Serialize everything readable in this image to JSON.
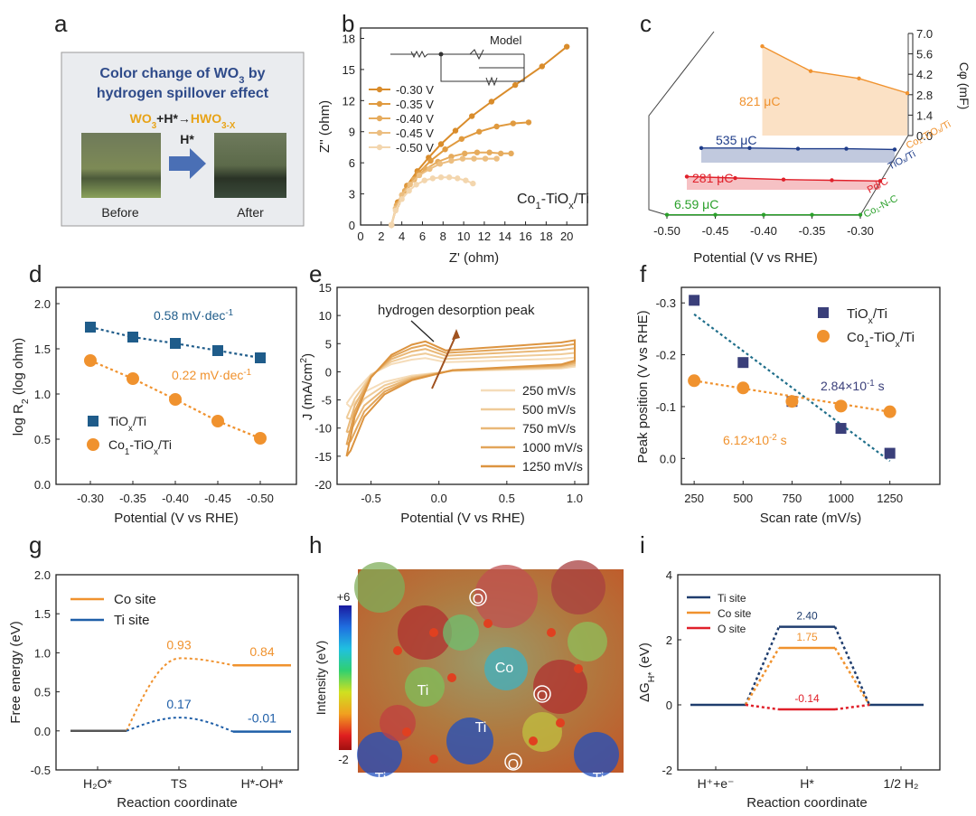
{
  "panel_labels": [
    "a",
    "b",
    "c",
    "d",
    "e",
    "f",
    "g",
    "h",
    "i"
  ],
  "panel_a": {
    "title_line1": "Color change of WO",
    "title_sub": "3",
    "title_line1_end": " by",
    "title_line2": "hydrogen spillover effect",
    "eq_wo": "WO",
    "eq_3": "3",
    "eq_mid": "+H*→",
    "eq_hwo": "HWO",
    "eq_3x": "3-X",
    "arrow_label": "H*",
    "before": "Before",
    "after": "After",
    "colors": {
      "title": "#2f4b8a",
      "eq": "#e8a317",
      "arrow": "#4a6fb5",
      "box_bg": "#eaecef"
    }
  },
  "chart_data": [
    {
      "panel": "b",
      "type": "line",
      "xlabel": "Z' (ohm)",
      "ylabel": "Z'' (ohm)",
      "xlim": [
        0,
        22
      ],
      "ylim": [
        0,
        19
      ],
      "xticks": [
        0,
        2,
        4,
        6,
        8,
        10,
        12,
        14,
        16,
        18,
        20
      ],
      "yticks": [
        0,
        3,
        6,
        9,
        12,
        15,
        18
      ],
      "model_label": "Model",
      "annotation": "Co",
      "annotation_sub": "1",
      "annotation_end": "-TiO",
      "annotation_sub2": "x",
      "annotation_end2": "/Ti",
      "series": [
        {
          "name": "-0.30 V",
          "color": "#d98c2b",
          "x": [
            3,
            3.6,
            4.5,
            5.5,
            6.6,
            7.8,
            9.2,
            10.8,
            12.7,
            15,
            17.6,
            20
          ],
          "y": [
            0,
            2.2,
            3.8,
            5.2,
            6.5,
            7.8,
            9.1,
            10.5,
            11.9,
            13.5,
            15.3,
            17.2
          ]
        },
        {
          "name": "-0.35 V",
          "color": "#e09a3f",
          "x": [
            3,
            3.6,
            4.5,
            5.6,
            6.8,
            8.2,
            9.8,
            11.5,
            13.2,
            14.8,
            16.3
          ],
          "y": [
            0,
            2.1,
            3.7,
            5,
            6.2,
            7.3,
            8.3,
            9.0,
            9.5,
            9.8,
            9.9
          ]
        },
        {
          "name": "-0.40 V",
          "color": "#e6ab5c",
          "x": [
            3,
            3.5,
            4.3,
            5.2,
            6.3,
            7.5,
            8.8,
            10.1,
            11.3,
            12.5,
            13.6,
            14.6
          ],
          "y": [
            0,
            1.9,
            3.3,
            4.4,
            5.4,
            6.1,
            6.6,
            6.9,
            7.0,
            7.0,
            6.9,
            6.9
          ]
        },
        {
          "name": "-0.45 V",
          "color": "#ecbe80",
          "x": [
            3,
            3.4,
            4,
            4.8,
            5.7,
            6.7,
            7.7,
            8.8,
            9.9,
            11,
            12.1,
            13.2
          ],
          "y": [
            0,
            1.6,
            2.9,
            3.9,
            4.8,
            5.4,
            5.9,
            6.2,
            6.4,
            6.4,
            6.4,
            6.4
          ]
        },
        {
          "name": "-0.50 V",
          "color": "#f3d6ae",
          "x": [
            3,
            3.4,
            4,
            4.7,
            5.4,
            6.2,
            7.0,
            7.8,
            8.6,
            9.4,
            10.2,
            10.9
          ],
          "y": [
            0,
            1.4,
            2.5,
            3.3,
            3.9,
            4.3,
            4.5,
            4.6,
            4.6,
            4.5,
            4.3,
            4.0
          ]
        }
      ]
    },
    {
      "panel": "c",
      "type": "line",
      "xlabel": "Potential (V vs RHE)",
      "ylabel": "Cφ (mF)",
      "xlim": [
        -0.5,
        -0.3
      ],
      "xticks": [
        -0.5,
        -0.45,
        -0.4,
        -0.35,
        -0.3
      ],
      "yticks": [
        0.0,
        1.4,
        2.8,
        4.2,
        5.6,
        7.0
      ],
      "series": [
        {
          "name": "Co₁-TiOₓ/Ti",
          "color": "#f0922e",
          "label": "821 μC",
          "x": [
            -0.45,
            -0.4,
            -0.35,
            -0.3
          ],
          "y": [
            6.1,
            4.4,
            3.9,
            2.9
          ]
        },
        {
          "name": "TiOₓ/Ti",
          "color": "#1f3d8a",
          "label": "535 μC",
          "x": [
            -0.5,
            -0.45,
            -0.4,
            -0.35,
            -0.3
          ],
          "y": [
            1.0,
            1.0,
            0.95,
            0.95,
            0.9
          ]
        },
        {
          "name": "Pd/C",
          "color": "#e0202a",
          "label": "281 μC",
          "x": [
            -0.5,
            -0.45,
            -0.4,
            -0.35,
            -0.3
          ],
          "y": [
            0.9,
            0.8,
            0.7,
            0.65,
            0.6
          ]
        },
        {
          "name": "Co₁-N-C",
          "color": "#2aa02a",
          "label": "6.59 μC",
          "x": [
            -0.5,
            -0.45,
            -0.4,
            -0.35,
            -0.3
          ],
          "y": [
            0.02,
            0.02,
            0.02,
            0.02,
            0.02
          ]
        }
      ]
    },
    {
      "panel": "d",
      "type": "scatter",
      "xlabel": "Potential (V vs RHE)",
      "ylabel": "log R₂ (log ohm)",
      "categories": [
        "-0.30",
        "-0.35",
        "-0.40",
        "-0.45",
        "-0.50"
      ],
      "ylim": [
        0.0,
        2.0
      ],
      "yticks": [
        "0.0",
        "0.5",
        "1.0",
        "1.5",
        "2.0"
      ],
      "series": [
        {
          "name": "TiOₓ/Ti",
          "color": "#1f5c8a",
          "marker": "square",
          "values": [
            1.74,
            1.63,
            1.56,
            1.48,
            1.4
          ],
          "slope_label": "0.58 mV·dec",
          "slope_sup": "-1"
        },
        {
          "name": "Co₁-TiOₓ/Ti",
          "color": "#f0922e",
          "marker": "circle",
          "values": [
            1.37,
            1.17,
            0.94,
            0.7,
            0.51
          ],
          "slope_label": "0.22 mV·dec",
          "slope_sup": "-1"
        }
      ]
    },
    {
      "panel": "e",
      "type": "line",
      "xlabel": "Potential (V vs RHE)",
      "ylabel": "J (mA/cm²)",
      "xlim": [
        -0.75,
        1.1
      ],
      "ylim": [
        -20,
        15
      ],
      "xticks": [
        "-0.5",
        "0.0",
        "0.5",
        "1.0"
      ],
      "yticks": [
        "-20",
        "-15",
        "-10",
        "-5",
        "0",
        "5",
        "10",
        "15"
      ],
      "annotation": "hydrogen desorption peak",
      "series": [
        {
          "name": "250 mV/s",
          "color": "#f5dcb9",
          "scale": 0.45
        },
        {
          "name": "500 mV/s",
          "color": "#efcb98",
          "scale": 0.6
        },
        {
          "name": "750 mV/s",
          "color": "#e9b878",
          "scale": 0.75
        },
        {
          "name": "1000 mV/s",
          "color": "#e2a55a",
          "scale": 0.88
        },
        {
          "name": "1250 mV/s",
          "color": "#dc9440",
          "scale": 1.0
        }
      ]
    },
    {
      "panel": "f",
      "type": "scatter",
      "xlabel": "Scan rate (mV/s)",
      "ylabel": "Peak position (V vs RHE)",
      "x": [
        250,
        500,
        750,
        1000,
        1250
      ],
      "xticks": [
        "250",
        "500",
        "750",
        "1000",
        "1250"
      ],
      "ylim": [
        0.05,
        -0.33
      ],
      "yticks": [
        "-0.3",
        "-0.2",
        "-0.1",
        "0.0"
      ],
      "series": [
        {
          "name": "TiOₓ/Ti",
          "color": "#3a3f7a",
          "marker": "square",
          "values": [
            -0.305,
            -0.185,
            -0.11,
            -0.058,
            -0.01
          ],
          "slope_label": "2.84×10",
          "slope_sup": "-1",
          "slope_end": " s"
        },
        {
          "name": "Co₁-TiOₓ/Ti",
          "color": "#f0922e",
          "marker": "circle",
          "values": [
            -0.15,
            -0.136,
            -0.11,
            -0.101,
            -0.09
          ],
          "slope_label": "6.12×10",
          "slope_sup": "-2",
          "slope_end": " s"
        }
      ]
    },
    {
      "panel": "g",
      "type": "line",
      "xlabel": "Reaction coordinate",
      "ylabel": "Free energy (eV)",
      "categories": [
        "H₂O*",
        "TS",
        "H*-OH*"
      ],
      "ylim": [
        -0.5,
        2.0
      ],
      "yticks": [
        "-0.5",
        "0.0",
        "0.5",
        "1.0",
        "1.5",
        "2.0"
      ],
      "series": [
        {
          "name": "Co site",
          "color": "#f0922e",
          "values": [
            0.0,
            0.93,
            0.84
          ],
          "labels": [
            "",
            "0.93",
            "0.84"
          ]
        },
        {
          "name": "Ti site",
          "color": "#1f5fa8",
          "values": [
            0.0,
            0.17,
            -0.01
          ],
          "labels": [
            "",
            "0.17",
            "-0.01"
          ]
        }
      ]
    },
    {
      "panel": "i",
      "type": "line",
      "xlabel": "Reaction coordinate",
      "ylabel": "ΔG",
      "ylabel_sub": "H*",
      "ylabel_end": " (eV)",
      "categories": [
        "H⁺+e⁻",
        "H*",
        "1/2 H₂"
      ],
      "ylim": [
        -2,
        4
      ],
      "yticks": [
        "-2",
        "0",
        "2",
        "4"
      ],
      "series": [
        {
          "name": "Ti site",
          "color": "#1f3d6e",
          "values": [
            0,
            2.4,
            0
          ],
          "label": "2.40"
        },
        {
          "name": "Co site",
          "color": "#f0922e",
          "values": [
            0,
            1.75,
            0
          ],
          "label": "1.75"
        },
        {
          "name": "O site",
          "color": "#e0202a",
          "values": [
            0,
            -0.14,
            0
          ],
          "label": "-0.14"
        }
      ]
    }
  ],
  "panel_h": {
    "colorbar_label": "Intensity (eV)",
    "cb_max": "+6",
    "cb_min": "-2",
    "atoms": [
      "O",
      "Co",
      "O",
      "Ti",
      "Ti",
      "O",
      "Ti",
      "Ti"
    ]
  }
}
